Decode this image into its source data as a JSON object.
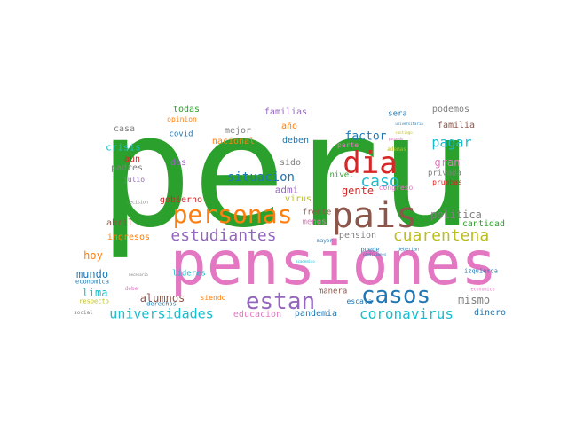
{
  "words": [
    {
      "text": "peru",
      "color": "#2ca02c"
    },
    {
      "text": "pensiones",
      "color": "#e377c2"
    },
    {
      "text": "pais",
      "color": "#8c564b"
    },
    {
      "text": "dia",
      "color": "#d62728"
    },
    {
      "text": "personas",
      "color": "#ff7f0e"
    },
    {
      "text": "casos",
      "color": "#1f77b4"
    },
    {
      "text": "estan",
      "color": "#9467bd"
    },
    {
      "text": "estudiantes",
      "color": "#9467bd"
    },
    {
      "text": "cuarentena",
      "color": "#bcbd22"
    },
    {
      "text": "caso",
      "color": "#17becf"
    },
    {
      "text": "coronavirus",
      "color": "#17becf"
    },
    {
      "text": "universidades",
      "color": "#17becf"
    },
    {
      "text": "situacion",
      "color": "#1f77b4"
    },
    {
      "text": "pagar",
      "color": "#17becf"
    },
    {
      "text": "factor",
      "color": "#1f77b4"
    },
    {
      "text": "gran",
      "color": "#e377c2"
    },
    {
      "text": "politica",
      "color": "#7f7f7f"
    },
    {
      "text": "mundo",
      "color": "#1f77b4"
    },
    {
      "text": "lima",
      "color": "#17becf"
    },
    {
      "text": "hoy",
      "color": "#ff7f0e"
    },
    {
      "text": "alumnos",
      "color": "#8c564b"
    },
    {
      "text": "mismo",
      "color": "#7f7f7f"
    },
    {
      "text": "gente",
      "color": "#d62728"
    },
    {
      "text": "admi",
      "color": "#9467bd"
    },
    {
      "text": "crisis",
      "color": "#17becf"
    },
    {
      "text": "aun",
      "color": "#d62728"
    },
    {
      "text": "padres",
      "color": "#7f7f7f"
    },
    {
      "text": "casa",
      "color": "#7f7f7f"
    },
    {
      "text": "todas",
      "color": "#2ca02c"
    },
    {
      "text": "familias",
      "color": "#9467bd"
    },
    {
      "text": "podemos",
      "color": "#7f7f7f"
    },
    {
      "text": "familia",
      "color": "#8c564b"
    },
    {
      "text": "sera",
      "color": "#1f77b4"
    },
    {
      "text": "deben",
      "color": "#1f77b4"
    },
    {
      "text": "año",
      "color": "#ff7f0e"
    },
    {
      "text": "mejor",
      "color": "#7f7f7f"
    },
    {
      "text": "nacional",
      "color": "#ff7f0e"
    },
    {
      "text": "covid",
      "color": "#1f77b4"
    },
    {
      "text": "opinion",
      "color": "#ff7f0e"
    },
    {
      "text": "dos",
      "color": "#9467bd"
    },
    {
      "text": "sido",
      "color": "#7f7f7f"
    },
    {
      "text": "gobierno",
      "color": "#d62728"
    },
    {
      "text": "virus",
      "color": "#bcbd22"
    },
    {
      "text": "nivel",
      "color": "#2ca02c"
    },
    {
      "text": "abril",
      "color": "#8c564b"
    },
    {
      "text": "ingresos",
      "color": "#ff7f0e"
    },
    {
      "text": "frente",
      "color": "#8c564b"
    },
    {
      "text": "menos",
      "color": "#e377c2"
    },
    {
      "text": "pension",
      "color": "#7f7f7f"
    },
    {
      "text": "cantidad",
      "color": "#2ca02c"
    },
    {
      "text": "educacion",
      "color": "#e377c2"
    },
    {
      "text": "pandemia",
      "color": "#1f77b4"
    },
    {
      "text": "dinero",
      "color": "#1f77b4"
    },
    {
      "text": "privada",
      "color": "#7f7f7f"
    },
    {
      "text": "pruebas",
      "color": "#d62728"
    },
    {
      "text": "manera",
      "color": "#8c564b"
    },
    {
      "text": "escala",
      "color": "#1f77b4"
    },
    {
      "text": "lideres",
      "color": "#17becf"
    },
    {
      "text": "siendo",
      "color": "#ff7f0e"
    },
    {
      "text": "derechos",
      "color": "#1f77b4"
    },
    {
      "text": "economica",
      "color": "#1f77b4"
    },
    {
      "text": "respecto",
      "color": "#bcbd22"
    },
    {
      "text": "social",
      "color": "#7f7f7f"
    },
    {
      "text": "julio",
      "color": "#9467bd"
    },
    {
      "text": "congreso",
      "color": "#e377c2"
    },
    {
      "text": "parte",
      "color": "#e377c2"
    },
    {
      "text": "ademas",
      "color": "#bcbd22"
    },
    {
      "text": "puede",
      "color": "#1f77b4"
    },
    {
      "text": "condiciones",
      "color": "#1f77b4"
    },
    {
      "text": "izquierda",
      "color": "#1f77b4"
    },
    {
      "text": "economico",
      "color": "#e377c2"
    },
    {
      "text": "mayor",
      "color": "#1f77b4"
    },
    {
      "text": "deberian",
      "color": "#1f77b4"
    },
    {
      "text": "pagando",
      "color": "#e377c2"
    },
    {
      "text": "decision",
      "color": "#7f7f7f"
    },
    {
      "text": "debe",
      "color": "#e377c2"
    },
    {
      "text": "academico",
      "color": "#17becf"
    },
    {
      "text": "necesario",
      "color": "#7f7f7f"
    },
    {
      "text": "universitaria",
      "color": "#1f77b4"
    },
    {
      "text": "santiago",
      "color": "#bcbd22"
    }
  ]
}
